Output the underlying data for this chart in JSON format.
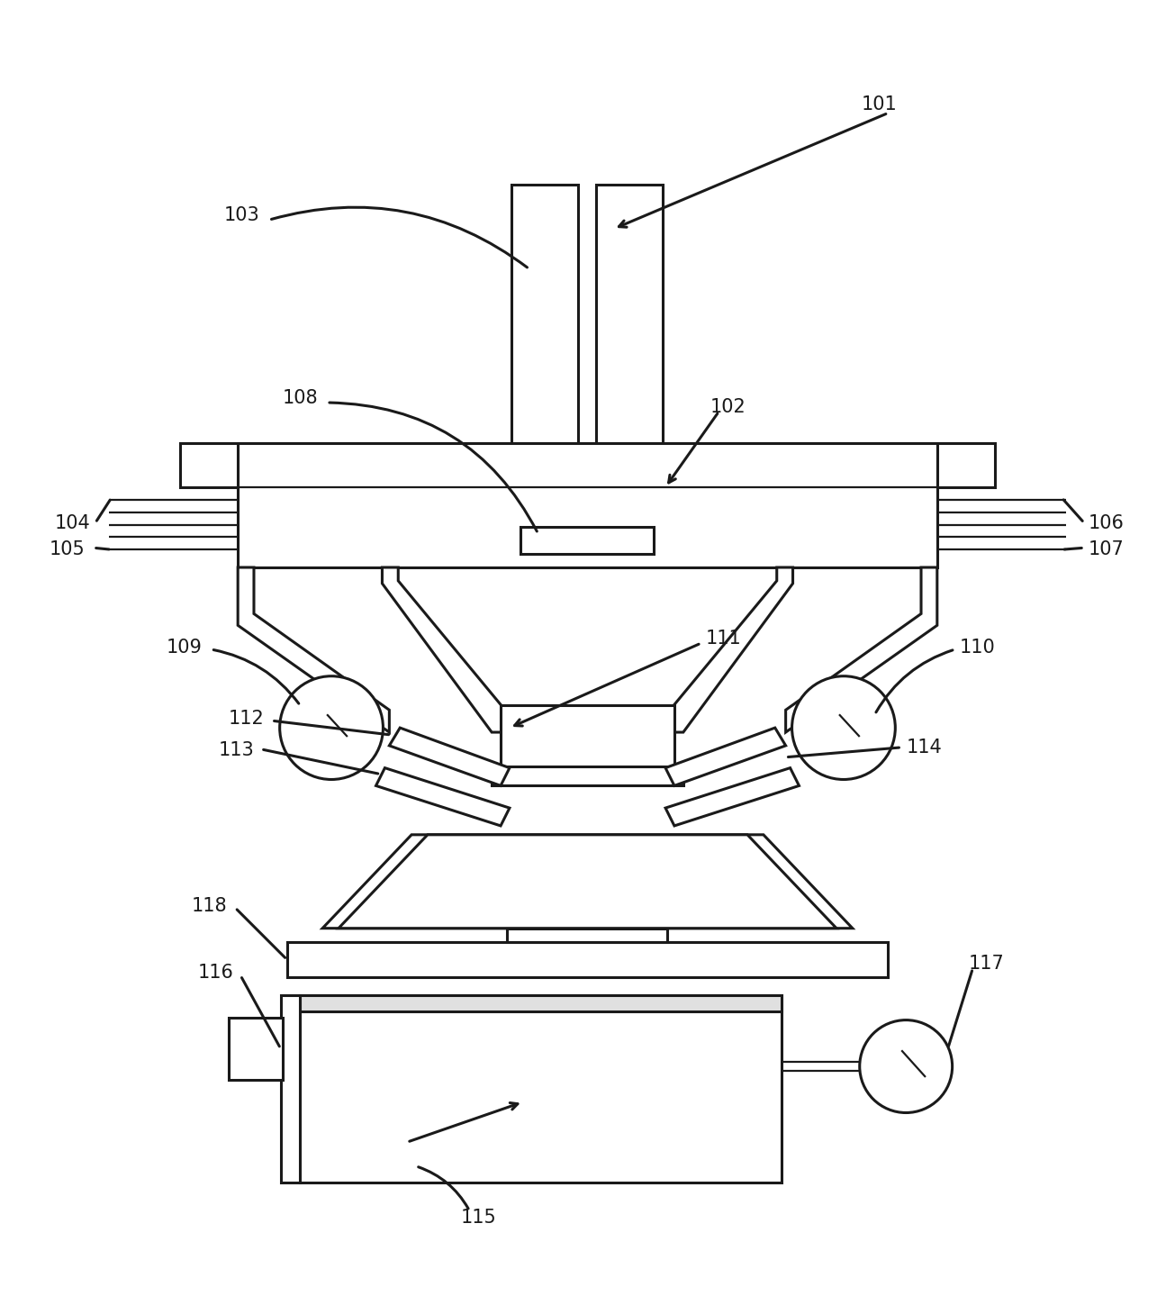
{
  "bg_color": "#ffffff",
  "line_color": "#1a1a1a",
  "lw_main": 2.2,
  "lw_thin": 1.6,
  "fig_width": 13.05,
  "fig_height": 14.49
}
